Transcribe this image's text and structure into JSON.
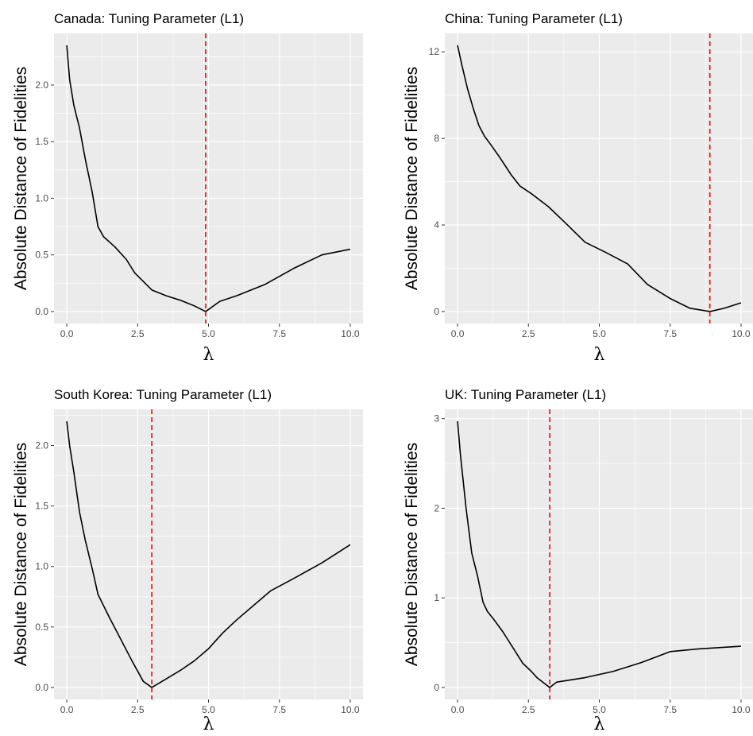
{
  "chart_data": [
    {
      "type": "line",
      "title": "Canada: Tuning Parameter (L1)",
      "xlabel": "λ",
      "ylabel": "Absolute Distance of Fidelities",
      "xlim": [
        0,
        10
      ],
      "ylim": [
        0,
        2.35
      ],
      "x_ticks": [
        0,
        2.5,
        5,
        7.5,
        10
      ],
      "x_tick_labels": [
        "0.0",
        "2.5",
        "5.0",
        "7.5",
        "10.0"
      ],
      "y_ticks": [
        0,
        0.5,
        1,
        1.5,
        2
      ],
      "y_tick_labels": [
        "0.0",
        "0.5",
        "1.0",
        "1.5",
        "2.0"
      ],
      "x": [
        0,
        0.1,
        0.25,
        0.45,
        0.65,
        0.9,
        1.1,
        1.3,
        1.7,
        2.1,
        2.4,
        3.0,
        3.5,
        4.0,
        4.5,
        4.9,
        5.4,
        6.0,
        7.0,
        8.0,
        9.0,
        10.0
      ],
      "y": [
        2.35,
        2.05,
        1.82,
        1.62,
        1.35,
        1.05,
        0.75,
        0.66,
        0.57,
        0.46,
        0.34,
        0.19,
        0.14,
        0.1,
        0.05,
        0.0,
        0.09,
        0.14,
        0.24,
        0.38,
        0.5,
        0.55
      ],
      "vline": 4.9,
      "line_color": "#000000",
      "vline_color": "#ff0000",
      "panel_bg": "#ebebeb",
      "grid": true
    },
    {
      "type": "line",
      "title": "China: Tuning Parameter (L1)",
      "xlabel": "λ",
      "ylabel": "Absolute Distance of Fidelities",
      "xlim": [
        0,
        10
      ],
      "ylim": [
        0,
        12.3
      ],
      "x_ticks": [
        0,
        2.5,
        5,
        7.5,
        10
      ],
      "x_tick_labels": [
        "0.0",
        "2.5",
        "5.0",
        "7.5",
        "10.0"
      ],
      "y_ticks": [
        0,
        4,
        8,
        12
      ],
      "y_tick_labels": [
        "0",
        "4",
        "8",
        "12"
      ],
      "x": [
        0,
        0.15,
        0.35,
        0.55,
        0.75,
        0.95,
        1.15,
        1.5,
        1.9,
        2.2,
        2.6,
        3.2,
        3.8,
        4.5,
        5.2,
        6.0,
        6.7,
        7.5,
        8.2,
        8.9,
        9.4,
        10.0
      ],
      "y": [
        12.3,
        11.4,
        10.3,
        9.4,
        8.6,
        8.1,
        7.75,
        7.1,
        6.3,
        5.8,
        5.45,
        4.85,
        4.1,
        3.2,
        2.75,
        2.2,
        1.25,
        0.6,
        0.15,
        0.0,
        0.15,
        0.4
      ],
      "vline": 8.9,
      "line_color": "#000000",
      "vline_color": "#ff0000",
      "panel_bg": "#ebebeb",
      "grid": true
    },
    {
      "type": "line",
      "title": "South Korea: Tuning Parameter (L1)",
      "xlabel": "λ",
      "ylabel": "Absolute Distance of Fidelities",
      "xlim": [
        0,
        10
      ],
      "ylim": [
        0,
        2.2
      ],
      "x_ticks": [
        0,
        2.5,
        5,
        7.5,
        10
      ],
      "x_tick_labels": [
        "0.0",
        "2.5",
        "5.0",
        "7.5",
        "10.0"
      ],
      "y_ticks": [
        0,
        0.5,
        1,
        1.5,
        2
      ],
      "y_tick_labels": [
        "0.0",
        "0.5",
        "1.0",
        "1.5",
        "2.0"
      ],
      "x": [
        0,
        0.1,
        0.25,
        0.45,
        0.65,
        0.9,
        1.1,
        1.5,
        1.9,
        2.3,
        2.7,
        3.0,
        3.5,
        4.0,
        4.5,
        5.0,
        5.5,
        6.0,
        6.5,
        7.2,
        8.0,
        9.0,
        10.0
      ],
      "y": [
        2.2,
        2.0,
        1.78,
        1.45,
        1.22,
        0.98,
        0.77,
        0.58,
        0.4,
        0.22,
        0.05,
        0.0,
        0.07,
        0.14,
        0.22,
        0.32,
        0.45,
        0.56,
        0.66,
        0.8,
        0.9,
        1.03,
        1.18
      ],
      "vline": 3.0,
      "line_color": "#000000",
      "vline_color": "#ff0000",
      "panel_bg": "#ebebeb",
      "grid": true
    },
    {
      "type": "line",
      "title": "UK: Tuning Parameter (L1)",
      "xlabel": "λ",
      "ylabel": "Absolute Distance of Fidelities",
      "xlim": [
        0,
        10
      ],
      "ylim": [
        0,
        2.97
      ],
      "x_ticks": [
        0,
        2.5,
        5,
        7.5,
        10
      ],
      "x_tick_labels": [
        "0.0",
        "2.5",
        "5.0",
        "7.5",
        "10.0"
      ],
      "y_ticks": [
        0,
        1,
        2,
        3
      ],
      "y_tick_labels": [
        "0",
        "1",
        "2",
        "3"
      ],
      "x": [
        0,
        0.1,
        0.2,
        0.3,
        0.4,
        0.5,
        0.7,
        0.9,
        1.05,
        1.3,
        1.6,
        2.0,
        2.3,
        2.6,
        2.8,
        3.0,
        3.25,
        3.5,
        4.5,
        5.5,
        6.5,
        7.5,
        8.5,
        10.0
      ],
      "y": [
        2.97,
        2.6,
        2.3,
        2.0,
        1.75,
        1.5,
        1.25,
        0.95,
        0.85,
        0.75,
        0.62,
        0.42,
        0.27,
        0.18,
        0.11,
        0.06,
        0.0,
        0.06,
        0.11,
        0.18,
        0.28,
        0.4,
        0.43,
        0.46
      ],
      "vline": 3.25,
      "line_color": "#000000",
      "vline_color": "#ff0000",
      "panel_bg": "#ebebeb",
      "grid": true
    }
  ]
}
